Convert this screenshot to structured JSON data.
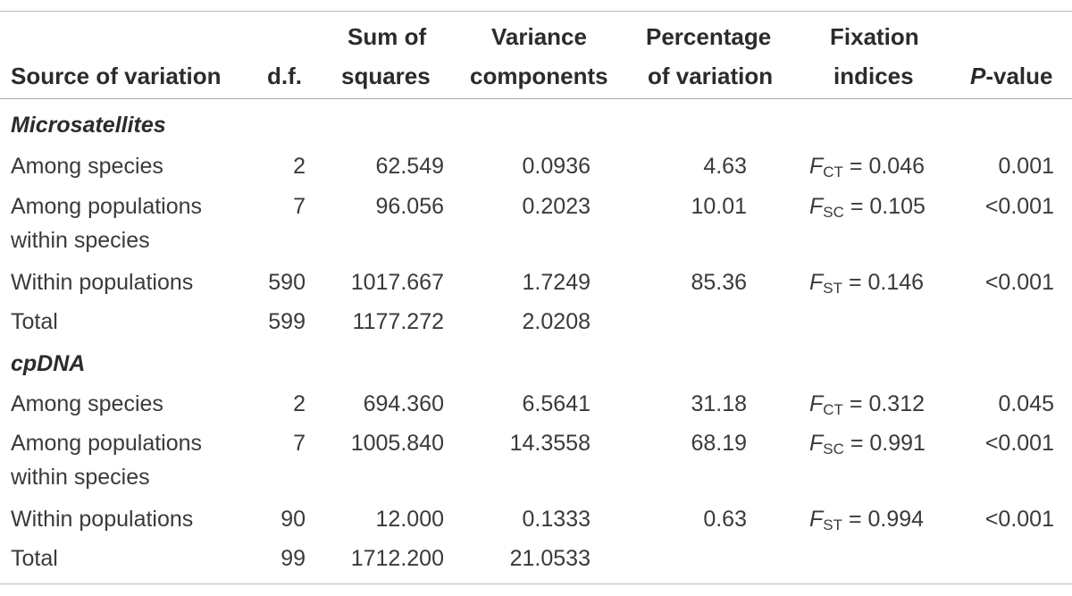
{
  "headers": {
    "source": "Source of variation",
    "df": "d.f.",
    "ss_line1": "Sum of",
    "ss_line2": "squares",
    "vc_line1": "Variance",
    "vc_line2": "components",
    "pv_line1": "Percentage",
    "pv_line2": "of variation",
    "fi_line1": "Fixation",
    "fi_line2": "indices",
    "p_italic": "P",
    "p_rest": "-value"
  },
  "sections": [
    {
      "title": "Microsatellites",
      "rows": [
        {
          "source": "Among species",
          "source2": "",
          "df": "2",
          "ss": "62.549",
          "vc": "0.0936",
          "pv": "4.63",
          "fi_sub": "CT",
          "fi_val": " = 0.046",
          "p": "0.001"
        },
        {
          "source": "Among populations",
          "source2": "within species",
          "df": "7",
          "ss": "96.056",
          "vc": "0.2023",
          "pv": "10.01",
          "fi_sub": "SC",
          "fi_val": " = 0.105",
          "p": "<0.001"
        },
        {
          "source": "Within populations",
          "source2": "",
          "df": "590",
          "ss": "1017.667",
          "vc": "1.7249",
          "pv": "85.36",
          "fi_sub": "ST",
          "fi_val": " = 0.146",
          "p": "<0.001"
        },
        {
          "source": "Total",
          "source2": "",
          "df": "599",
          "ss": "1177.272",
          "vc": "2.0208",
          "pv": "",
          "fi_sub": "",
          "fi_val": "",
          "p": ""
        }
      ]
    },
    {
      "title": "cpDNA",
      "rows": [
        {
          "source": "Among species",
          "source2": "",
          "df": "2",
          "ss": "694.360",
          "vc": "6.5641",
          "pv": "31.18",
          "fi_sub": "CT",
          "fi_val": " = 0.312",
          "p": "0.045"
        },
        {
          "source": "Among populations",
          "source2": "within species",
          "df": "7",
          "ss": "1005.840",
          "vc": "14.3558",
          "pv": "68.19",
          "fi_sub": "SC",
          "fi_val": " = 0.991",
          "p": "<0.001"
        },
        {
          "source": "Within populations",
          "source2": "",
          "df": "90",
          "ss": "12.000",
          "vc": "0.1333",
          "pv": "0.63",
          "fi_sub": "ST",
          "fi_val": " = 0.994",
          "p": "<0.001"
        },
        {
          "source": "Total",
          "source2": "",
          "df": "99",
          "ss": "1712.200",
          "vc": "21.0533",
          "pv": "",
          "fi_sub": "",
          "fi_val": "",
          "p": ""
        }
      ]
    }
  ],
  "fi_letter": "F"
}
